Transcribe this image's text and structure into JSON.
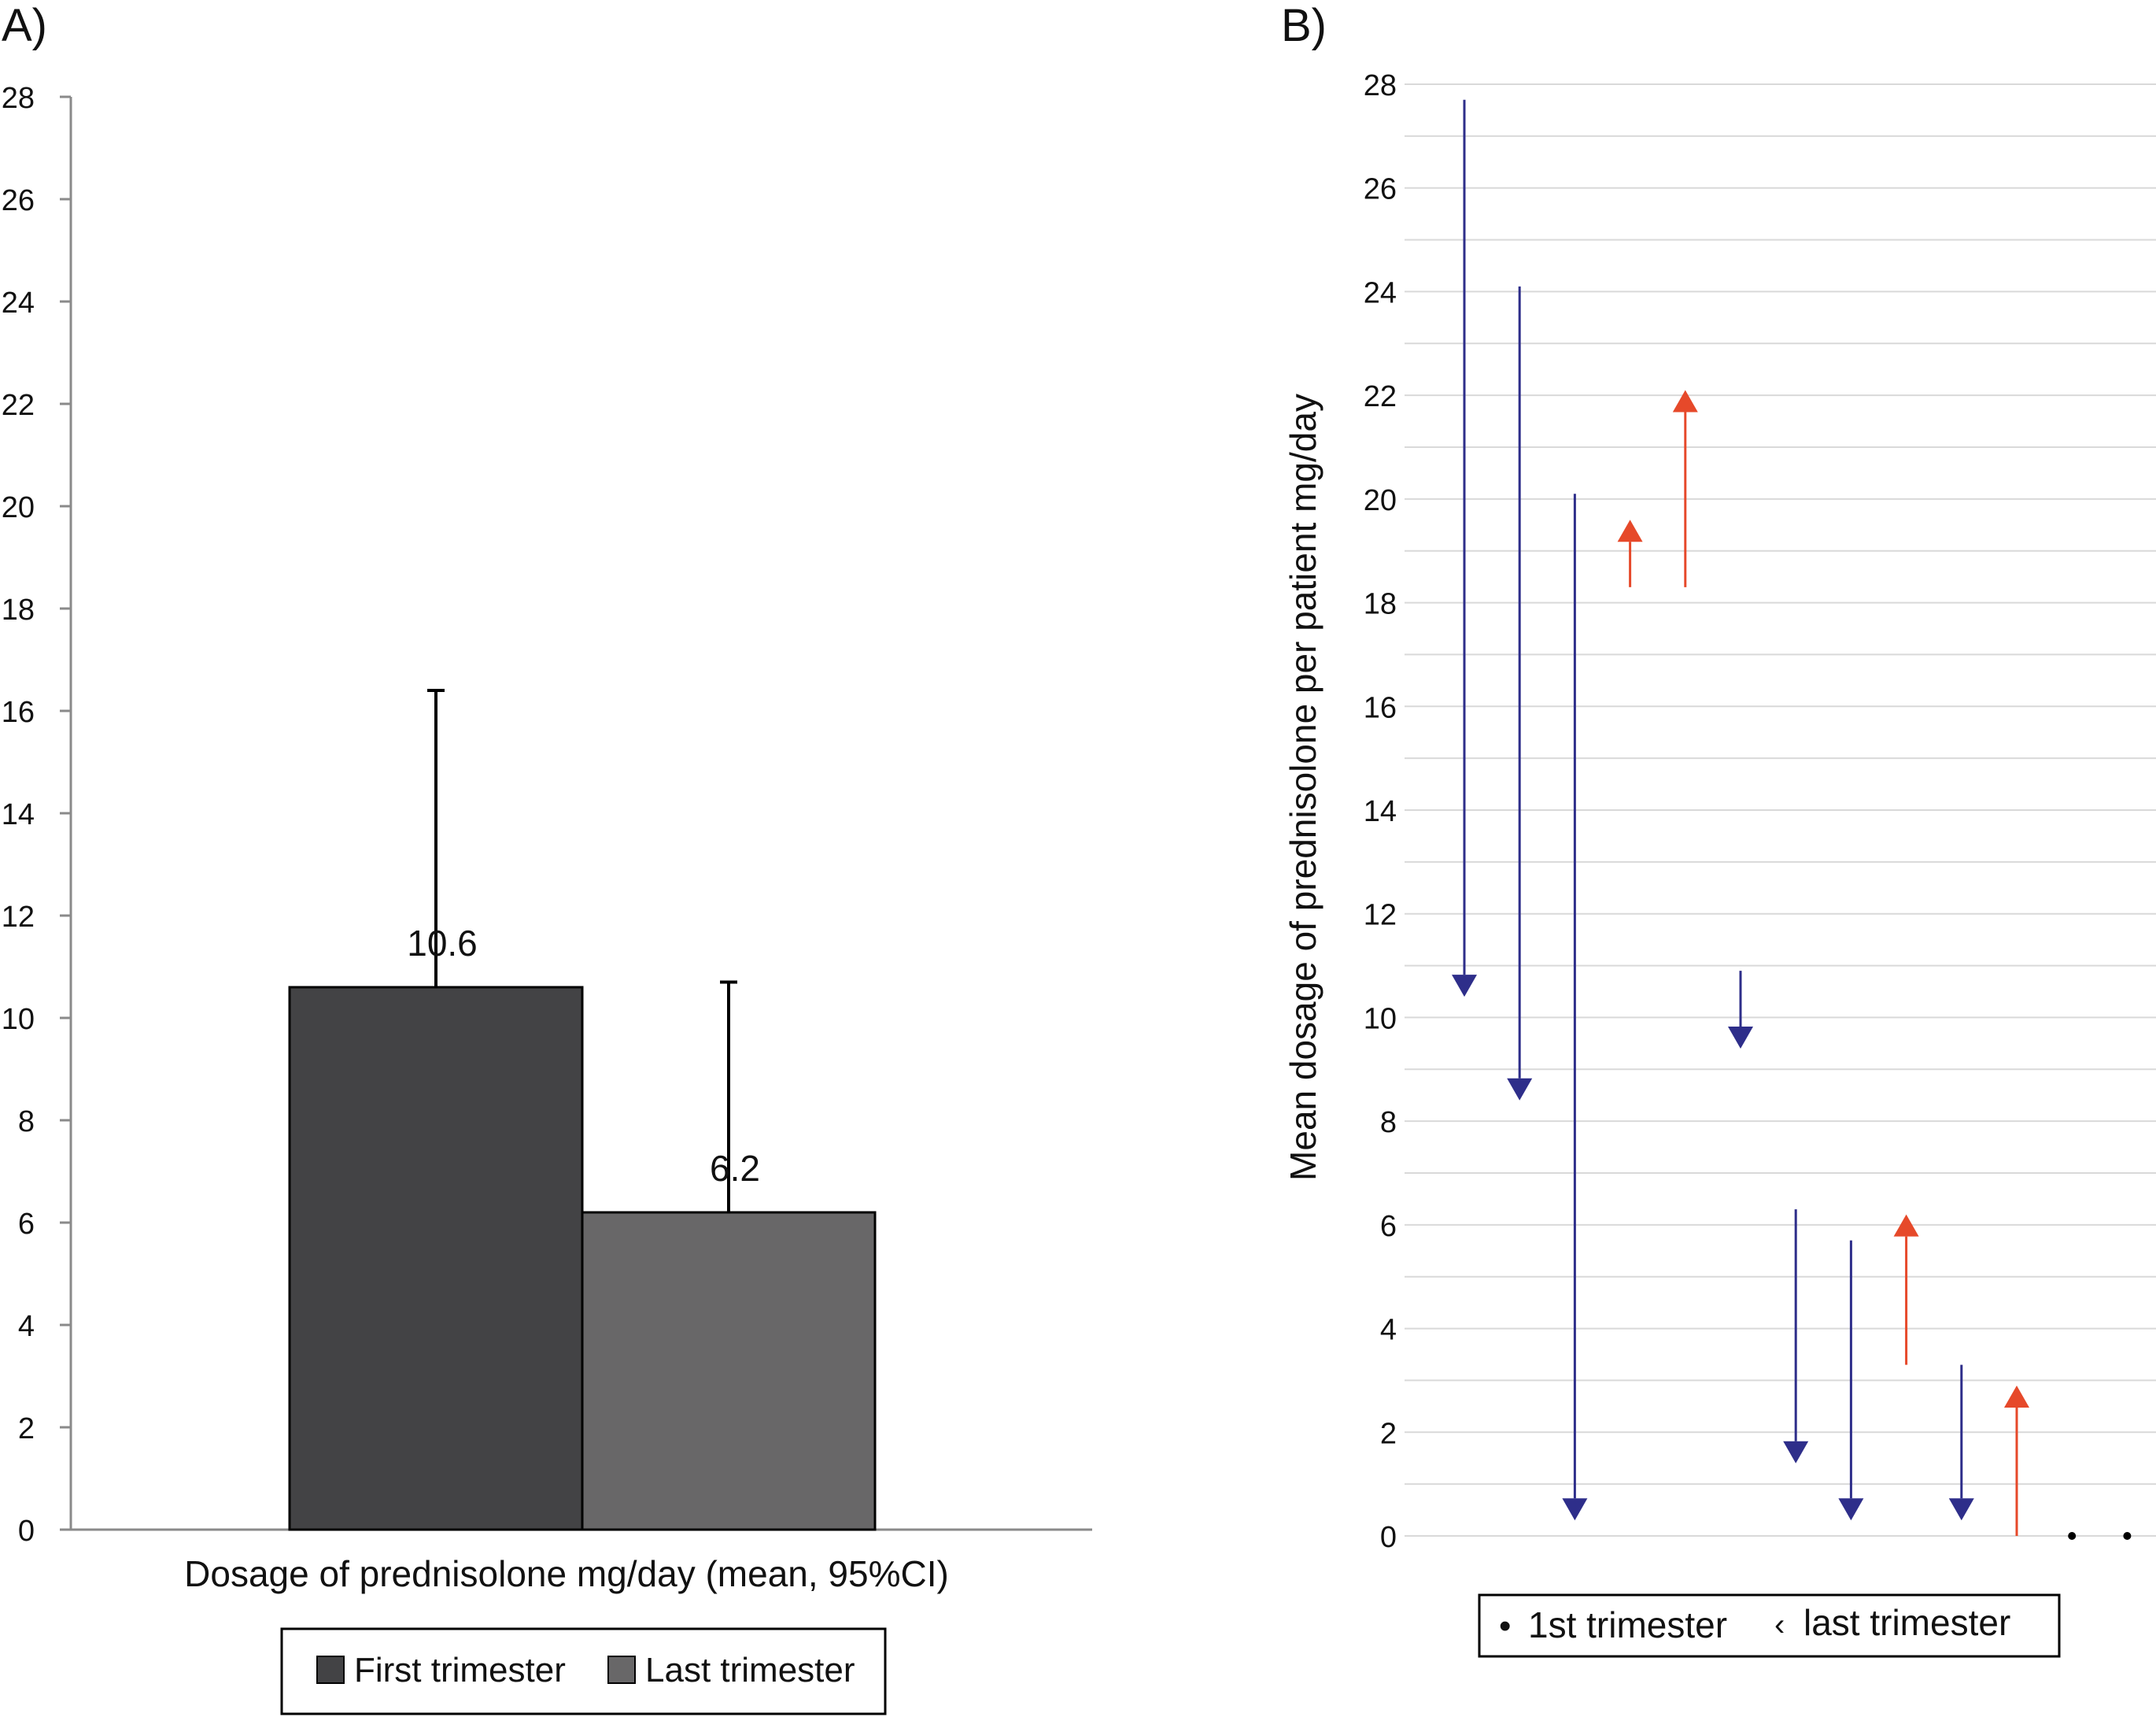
{
  "colors": {
    "first_trimester": "#434345",
    "last_trimester": "#686768",
    "decrease": "#2e2e8a",
    "increase": "#e6492a",
    "axis": "#8a8a8a",
    "grid": "#d9d9d9"
  },
  "chart_data": [
    {
      "panel_label": "A)",
      "type": "bar",
      "xlabel": "Dosage of prednisolone mg/day (mean, 95%CI)",
      "ylabel": "",
      "ylim": [
        0,
        28
      ],
      "yticks": [
        0,
        2,
        4,
        6,
        8,
        10,
        12,
        14,
        16,
        18,
        20,
        22,
        24,
        26,
        28
      ],
      "grid": false,
      "legend_placement": "bottom",
      "series": [
        {
          "name": "First trimester",
          "value": 10.6,
          "label": "10.6",
          "ci_upper": 16.4,
          "color_key": "first_trimester"
        },
        {
          "name": "Last trimester",
          "value": 6.2,
          "label": "6.2",
          "ci_upper": 10.7,
          "color_key": "last_trimester"
        }
      ]
    },
    {
      "panel_label": "B)",
      "type": "scatter",
      "ylabel": "Mean dosage of prednisolone per patient mg/day",
      "xlabel": "",
      "ylim": [
        0,
        28
      ],
      "yticks": [
        0,
        2,
        4,
        6,
        8,
        10,
        12,
        14,
        16,
        18,
        20,
        22,
        24,
        26,
        28
      ],
      "grid": true,
      "legend_placement": "bottom",
      "legend": [
        {
          "symbol": "•",
          "label": "1st trimester"
        },
        {
          "symbol": "‹",
          "label": "last trimester"
        }
      ],
      "patients": [
        {
          "patient": 1,
          "first": 27.7,
          "last": 10.4
        },
        {
          "patient": 2,
          "first": 24.1,
          "last": 8.4
        },
        {
          "patient": 3,
          "first": 20.1,
          "last": 0.3
        },
        {
          "patient": 4,
          "first": 18.3,
          "last": 19.6
        },
        {
          "patient": 5,
          "first": 18.3,
          "last": 22.1
        },
        {
          "patient": 6,
          "first": 10.9,
          "last": 9.4
        },
        {
          "patient": 7,
          "first": 6.3,
          "last": 1.4
        },
        {
          "patient": 8,
          "first": 5.7,
          "last": 0.3
        },
        {
          "patient": 9,
          "first": 3.3,
          "last": 6.2
        },
        {
          "patient": 10,
          "first": 3.3,
          "last": 0.3
        },
        {
          "patient": 11,
          "first": 0.0,
          "last": 2.9
        },
        {
          "patient": 12,
          "first": 0.0,
          "last": 0.0
        },
        {
          "patient": 13,
          "first": 0.0,
          "last": 0.0
        }
      ]
    }
  ]
}
